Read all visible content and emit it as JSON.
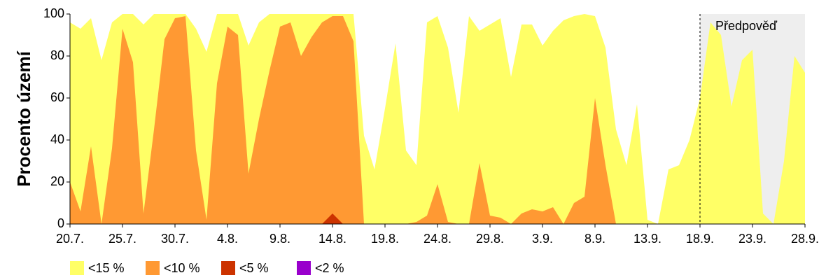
{
  "chart_data": {
    "type": "area",
    "ylabel": "Procento území",
    "categories": [
      "20.7.",
      null,
      null,
      null,
      null,
      "25.7.",
      null,
      null,
      null,
      null,
      "30.7.",
      null,
      null,
      null,
      null,
      "4.8.",
      null,
      null,
      null,
      null,
      "9.8.",
      null,
      null,
      null,
      null,
      "14.8.",
      null,
      null,
      null,
      null,
      "19.8.",
      null,
      null,
      null,
      null,
      "24.8.",
      null,
      null,
      null,
      null,
      "29.8.",
      null,
      null,
      null,
      null,
      "3.9.",
      null,
      null,
      null,
      null,
      "8.9.",
      null,
      null,
      null,
      null,
      "13.9.",
      null,
      null,
      null,
      null,
      "18.9.",
      null,
      null,
      null,
      null,
      "23.9.",
      null,
      null,
      null,
      null,
      "28.9."
    ],
    "series": [
      {
        "name": "<15 %",
        "color": "#ffff66",
        "values": [
          96,
          93,
          98,
          78,
          96,
          100,
          100,
          95,
          100,
          100,
          100,
          100,
          93,
          82,
          100,
          100,
          100,
          85,
          96,
          100,
          100,
          100,
          100,
          100,
          100,
          100,
          100,
          100,
          42,
          26,
          55,
          86,
          35,
          28,
          96,
          99,
          84,
          53,
          99,
          92,
          95,
          98,
          70,
          95,
          95,
          85,
          92,
          97,
          99,
          100,
          99,
          84,
          45,
          28,
          57,
          2,
          0,
          26,
          28,
          40,
          60,
          96,
          90,
          56,
          78,
          83,
          5,
          0,
          30,
          80,
          72
        ]
      },
      {
        "name": "<10 %",
        "color": "#ff9933",
        "values": [
          20,
          6,
          37,
          0,
          36,
          93,
          77,
          5,
          45,
          88,
          98,
          99,
          35,
          2,
          67,
          94,
          90,
          24,
          50,
          73,
          94,
          96,
          80,
          89,
          96,
          99,
          99,
          87,
          0,
          0,
          0,
          0,
          0,
          1,
          4,
          19,
          1,
          0,
          0,
          29,
          4,
          3,
          0,
          5,
          7,
          6,
          8,
          0,
          10,
          13,
          60,
          28,
          0,
          0,
          0,
          0,
          0,
          0,
          0,
          0,
          0,
          0,
          0,
          0,
          0,
          0,
          0,
          0,
          0,
          0,
          0
        ]
      },
      {
        "name": "<5 %",
        "color": "#cc3300",
        "values": [
          0,
          0,
          0,
          0,
          0,
          0,
          0,
          0,
          0,
          0,
          0,
          0,
          0,
          0,
          0,
          0,
          0,
          0,
          0,
          0,
          0,
          0,
          0,
          0,
          0,
          5,
          0,
          0,
          0,
          0,
          0,
          0,
          0,
          0,
          0,
          0,
          0,
          0,
          0,
          0,
          0,
          0,
          0,
          0,
          0,
          0,
          0,
          0,
          0,
          0,
          0,
          0,
          0,
          0,
          0,
          0,
          0,
          0,
          0,
          0,
          0,
          0,
          0,
          0,
          0,
          0,
          0,
          0,
          0,
          0,
          0
        ]
      },
      {
        "name": "<2 %",
        "color": "#9900cc",
        "values": [
          0,
          0,
          0,
          0,
          0,
          0,
          0,
          0,
          0,
          0,
          0,
          0,
          0,
          0,
          0,
          0,
          0,
          0,
          0,
          0,
          0,
          0,
          0,
          0,
          0,
          0,
          0,
          0,
          0,
          0,
          0,
          0,
          0,
          0,
          0,
          0,
          0,
          0,
          0,
          0,
          0,
          0,
          0,
          0,
          0,
          0,
          0,
          0,
          0,
          0,
          0,
          0,
          0,
          0,
          0,
          0,
          0,
          0,
          0,
          0,
          0,
          0,
          0,
          0,
          0,
          0,
          0,
          0,
          0,
          0,
          0
        ]
      }
    ],
    "ylim": [
      0,
      100
    ],
    "yticks": [
      0,
      20,
      40,
      60,
      80,
      100
    ],
    "forecast_label": "Předpověď",
    "forecast_start": "18.9.",
    "forecast_color": "#eeeeee"
  }
}
